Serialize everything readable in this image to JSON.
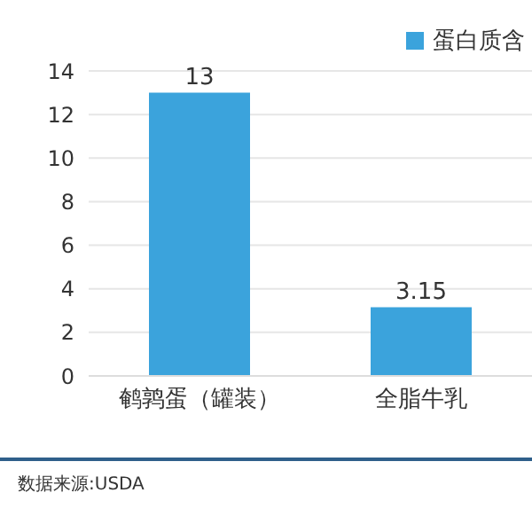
{
  "chart_data": {
    "type": "bar",
    "categories": [
      "鹌鹑蛋（罐装）",
      "全脂牛乳"
    ],
    "series": [
      {
        "name": "蛋白质含",
        "color": "#3ba3dc",
        "values": [
          13,
          3.15
        ]
      }
    ],
    "ylim": [
      0,
      14
    ],
    "yticks": [
      0,
      2,
      4,
      6,
      8,
      10,
      12,
      14
    ],
    "grid": "y",
    "legend": "top right",
    "data_labels": true,
    "annotations": [
      "数据来源:USDA"
    ]
  }
}
